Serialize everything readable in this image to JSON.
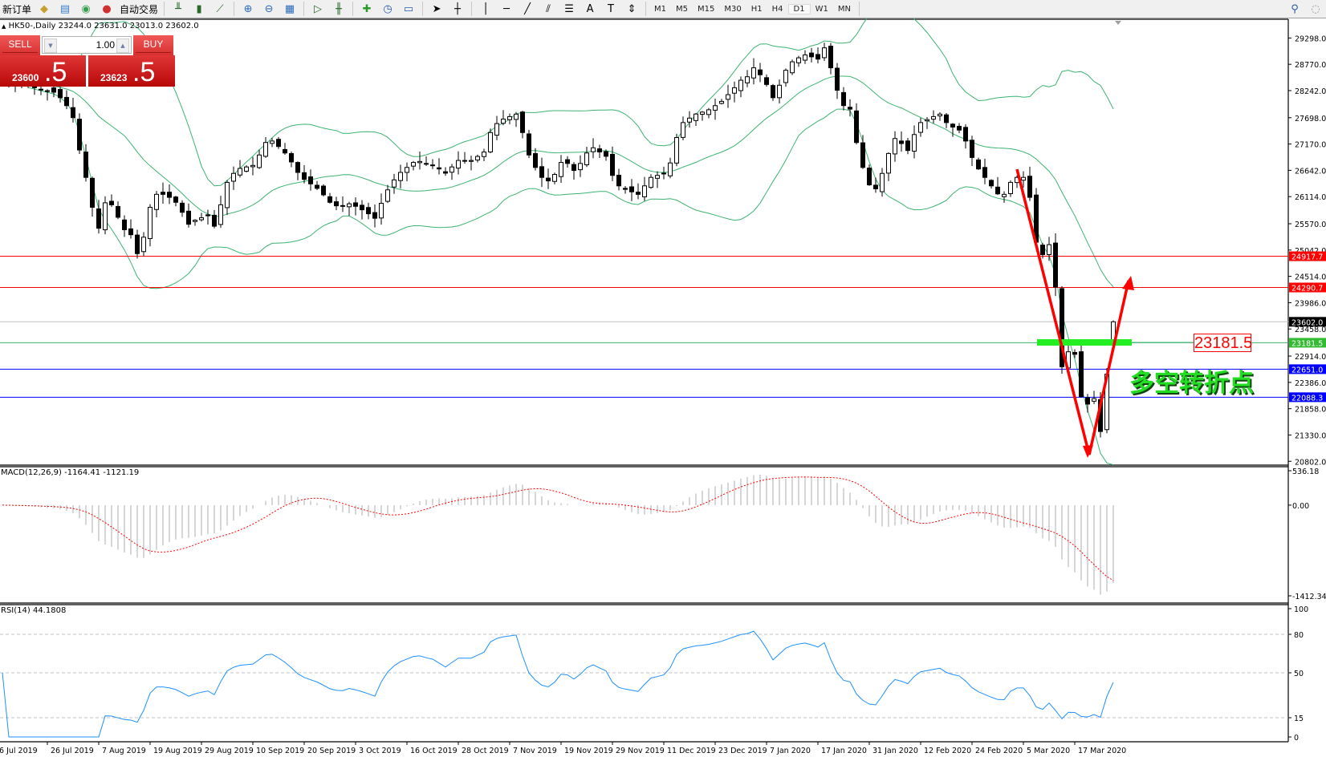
{
  "toolbar": {
    "new_order_label": "新订单",
    "auto_trading_label": "自动交易",
    "timeframes": [
      "M1",
      "M5",
      "M15",
      "M30",
      "H1",
      "H4",
      "D1",
      "W1",
      "MN"
    ],
    "active_timeframe": "D1",
    "icons": [
      "market-watch-icon",
      "navigator-icon",
      "signals-icon",
      "bar-chart-icon",
      "candlestick-icon",
      "line-chart-icon",
      "zoom-in-icon",
      "zoom-out-icon",
      "tile-windows-icon",
      "auto-scroll-icon",
      "chart-shift-icon",
      "indicators-icon",
      "periods-icon",
      "templates-icon",
      "cursor-icon",
      "crosshair-icon",
      "vertical-line-icon",
      "horizontal-line-icon",
      "trendline-icon",
      "fibonacci-icon",
      "text-icon",
      "text-label-icon",
      "arrows-icon",
      "search-icon",
      "community-icon"
    ]
  },
  "chart": {
    "title": "HK50-,Daily  23244.0 23631.0 23013.0 23602.0"
  },
  "trade_panel": {
    "sell_label": "SELL",
    "buy_label": "BUY",
    "lot": "1.00",
    "sell_big": "23600",
    "sell_pip": ".5",
    "buy_big": "23623",
    "buy_pip": ".5"
  },
  "annotations": {
    "level_box": "23181.5",
    "turning_point_text": "多空转折点"
  },
  "indicators": {
    "macd_label": "MACD(12,26,9) -1164.41 -1121.19",
    "rsi_label": "RSI(14) 44.1808"
  },
  "colors": {
    "bands": "#3cb371",
    "macd_hist": "#c0c0c0",
    "macd_signal": "#ff0000",
    "rsi": "#1e90ff",
    "bull_body": "#ffffff",
    "bear_body": "#000000",
    "annotation_arrow": "#ff0000",
    "annotation_bar": "#22ee22"
  },
  "chart_data": [
    {
      "type": "candlestick",
      "symbol": "HK50-",
      "timeframe": "Daily",
      "last_bar": {
        "open": 23244.0,
        "high": 23631.0,
        "low": 23013.0,
        "close": 23602.0
      },
      "ylim": [
        20774,
        29658
      ],
      "price_ticks": [
        29298.0,
        28770.0,
        28242.0,
        27698.0,
        27170.0,
        26642.0,
        26114.0,
        25570.0,
        25042.0,
        24514.0,
        23986.0,
        23458.0,
        22914.0,
        22386.0,
        21858.0,
        21330.0,
        20802.0
      ],
      "date_labels": [
        "6 Jul 2019",
        "26 Jul 2019",
        "7 Aug 2019",
        "19 Aug 2019",
        "29 Aug 2019",
        "10 Sep 2019",
        "20 Sep 2019",
        "3 Oct 2019",
        "16 Oct 2019",
        "28 Oct 2019",
        "7 Nov 2019",
        "19 Nov 2019",
        "29 Nov 2019",
        "11 Dec 2019",
        "23 Dec 2019",
        "7 Jan 2020",
        "17 Jan 2020",
        "31 Jan 2020",
        "12 Feb 2020",
        "24 Feb 2020",
        "5 Mar 2020",
        "17 Mar 2020"
      ],
      "closes": [
        28450,
        28420,
        28390,
        28360,
        28330,
        28300,
        28270,
        28240,
        28210,
        28100,
        27940,
        27700,
        27050,
        26500,
        25900,
        25480,
        25990,
        25950,
        25700,
        25450,
        25350,
        24970,
        25300,
        25900,
        26160,
        26160,
        26100,
        26000,
        25800,
        25560,
        25640,
        25690,
        25730,
        25520,
        25950,
        26400,
        26580,
        26680,
        26710,
        26740,
        26950,
        27200,
        27230,
        27120,
        26990,
        26810,
        26600,
        26460,
        26370,
        26280,
        26150,
        26000,
        25930,
        25920,
        25970,
        25920,
        25850,
        25770,
        25680,
        25980,
        26250,
        26450,
        26600,
        26700,
        26800,
        26820,
        26780,
        26750,
        26670,
        26585,
        26710,
        26840,
        26840,
        26840,
        26920,
        27009,
        27400,
        27580,
        27670,
        27720,
        27770,
        27400,
        26950,
        26700,
        26500,
        26430,
        26560,
        26800,
        26780,
        26640,
        26780,
        26990,
        27094,
        27010,
        26924,
        26540,
        26330,
        26260,
        26210,
        26160,
        26330,
        26500,
        26540,
        26585,
        26790,
        27300,
        27600,
        27690,
        27772,
        27810,
        27857,
        27940,
        28026,
        28160,
        28300,
        28450,
        28520,
        28700,
        28560,
        28365,
        28100,
        28350,
        28650,
        28820,
        28900,
        28958,
        28920,
        28874,
        29100,
        28700,
        28250,
        27941,
        27870,
        27200,
        26700,
        26350,
        26270,
        26580,
        26980,
        27280,
        27180,
        27040,
        27360,
        27600,
        27660,
        27720,
        27770,
        27600,
        27510,
        27450,
        27230,
        26900,
        26670,
        26500,
        26330,
        26170,
        26160,
        26400,
        26500,
        26500,
        26100,
        25200,
        24950,
        25150,
        24300,
        22700,
        23000,
        22950,
        22100,
        21950,
        22060,
        21400,
        22550,
        23602
      ],
      "horizontal_lines": [
        {
          "price": 24917.7,
          "label": "24917.7",
          "color": "#ff0000"
        },
        {
          "price": 24290.7,
          "label": "24290.7",
          "color": "#ff0000"
        },
        {
          "price": 23602.0,
          "label": "23602.0",
          "color": "#c0c0c0",
          "label_bg": "#000000"
        },
        {
          "price": 23181.5,
          "label": "23181.5",
          "color": "#3cb371",
          "label_bg": "#33bb33"
        },
        {
          "price": 22651.0,
          "label": "22651.0",
          "color": "#0000ff"
        },
        {
          "price": 22088.3,
          "label": "22088.3",
          "color": "#0000ff"
        }
      ],
      "overlays": [
        "Bollinger Bands(20,2)"
      ]
    },
    {
      "type": "bar+line",
      "name": "MACD(12,26,9)",
      "ylim": [
        -1412.34,
        536.18
      ],
      "ticks": [
        "536.18",
        "0.00",
        "-1412.34"
      ]
    },
    {
      "type": "line",
      "name": "RSI(14)",
      "ylim": [
        0,
        100
      ],
      "ticks": [
        "100",
        "80",
        "50",
        "15",
        "0"
      ],
      "levels": [
        80,
        50,
        15
      ]
    }
  ]
}
